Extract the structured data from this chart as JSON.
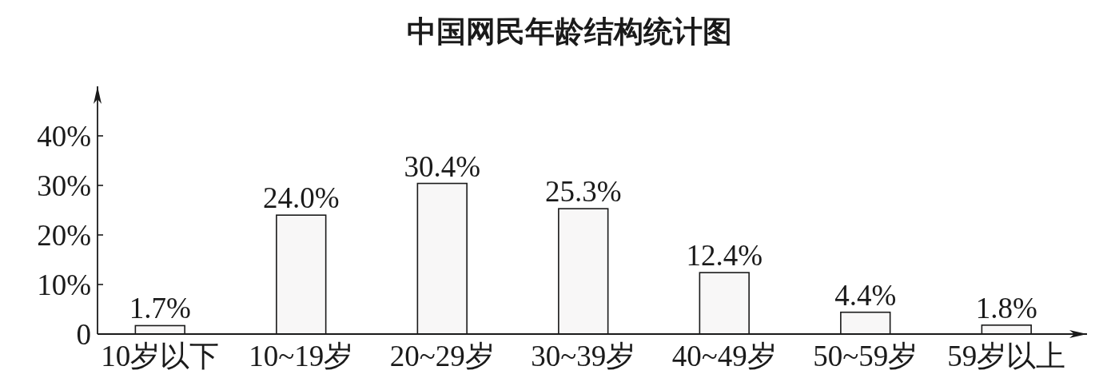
{
  "chart_data": {
    "type": "bar",
    "title": "中国网民年龄结构统计图",
    "categories": [
      "10岁以下",
      "10~19岁",
      "20~29岁",
      "30~39岁",
      "40~49岁",
      "50~59岁",
      "59岁以上"
    ],
    "values": [
      1.7,
      24.0,
      30.4,
      25.3,
      12.4,
      4.4,
      1.8
    ],
    "value_labels": [
      "1.7%",
      "24.0%",
      "30.4%",
      "25.3%",
      "12.4%",
      "4.4%",
      "1.8%"
    ],
    "color": "#f8f7f7",
    "ylim": [
      0,
      50
    ],
    "yticks": [
      0,
      {
        "value": 10,
        "label": "10%"
      },
      {
        "value": 20,
        "label": "20%"
      },
      {
        "value": 30,
        "label": "30%"
      },
      {
        "value": 40,
        "label": "40%"
      }
    ]
  }
}
